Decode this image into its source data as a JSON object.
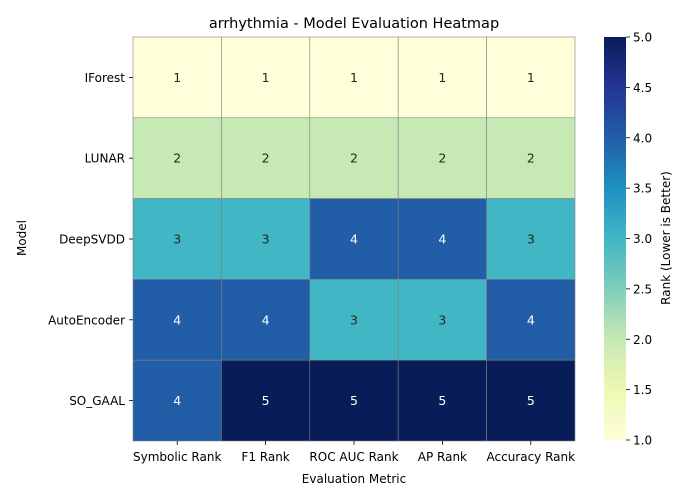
{
  "chart_data": {
    "type": "heatmap",
    "title": "arrhythmia - Model Evaluation Heatmap",
    "xlabel": "Evaluation Metric",
    "ylabel": "Model",
    "x_categories": [
      "Symbolic Rank",
      "F1 Rank",
      "ROC AUC Rank",
      "AP Rank",
      "Accuracy Rank"
    ],
    "y_categories": [
      "IForest",
      "LUNAR",
      "DeepSVDD",
      "AutoEncoder",
      "SO_GAAL"
    ],
    "values": [
      [
        1,
        1,
        1,
        1,
        1
      ],
      [
        2,
        2,
        2,
        2,
        2
      ],
      [
        3,
        3,
        4,
        4,
        3
      ],
      [
        4,
        4,
        3,
        3,
        4
      ],
      [
        4,
        5,
        5,
        5,
        5
      ]
    ],
    "colorbar": {
      "label": "Rank (Lower is Better)",
      "min": 1.0,
      "max": 5.0,
      "ticks": [
        "1.0",
        "1.5",
        "2.0",
        "2.5",
        "3.0",
        "3.5",
        "4.0",
        "4.5",
        "5.0"
      ]
    },
    "colormap": [
      "#ffffd9",
      "#edf8b1",
      "#c7e9b4",
      "#7fcdbb",
      "#41b6c4",
      "#1d91c0",
      "#225ea8",
      "#253494",
      "#081d58"
    ],
    "grid_color": "#808080"
  }
}
